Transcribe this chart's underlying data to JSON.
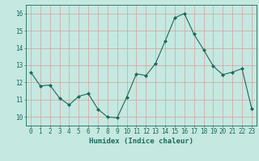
{
  "x": [
    0,
    1,
    2,
    3,
    4,
    5,
    6,
    7,
    8,
    9,
    10,
    11,
    12,
    13,
    14,
    15,
    16,
    17,
    18,
    19,
    20,
    21,
    22,
    23
  ],
  "y": [
    12.6,
    11.8,
    11.85,
    11.1,
    10.7,
    11.2,
    11.35,
    10.45,
    10.0,
    9.95,
    11.15,
    12.5,
    12.4,
    13.1,
    14.4,
    15.75,
    16.0,
    14.8,
    13.9,
    12.95,
    12.45,
    12.6,
    12.8,
    10.5
  ],
  "line_color": "#1a6b5a",
  "marker": "D",
  "marker_size": 2,
  "bg_color": "#c5e8e0",
  "grid_color": "#d4a0a0",
  "xlabel": "Humidex (Indice chaleur)",
  "ylim": [
    9.5,
    16.5
  ],
  "xlim": [
    -0.5,
    23.5
  ],
  "yticks": [
    10,
    11,
    12,
    13,
    14,
    15,
    16
  ],
  "xticks": [
    0,
    1,
    2,
    3,
    4,
    5,
    6,
    7,
    8,
    9,
    10,
    11,
    12,
    13,
    14,
    15,
    16,
    17,
    18,
    19,
    20,
    21,
    22,
    23
  ],
  "tick_color": "#1a6b5a",
  "label_fontsize": 6.5,
  "tick_fontsize": 5.5
}
